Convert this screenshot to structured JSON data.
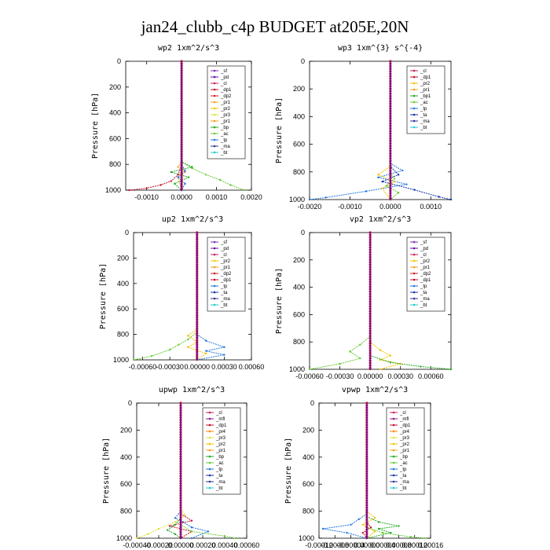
{
  "title": "jan24_clubb_c4p  BUDGET at205E,20N",
  "colors": {
    "sf": "#7b2fbe",
    "pd": "#6a0dad",
    "cl": "#c81e5a",
    "dp1": "#c0102a",
    "dp2": "#d42020",
    "pr1": "#f0a020",
    "pr2": "#f5c200",
    "pr3": "#e0e040",
    "pr4": "#ff8800",
    "bp": "#22aa22",
    "bp1": "#22aa22",
    "ac": "#66cc33",
    "tp": "#2277dd",
    "ta": "#1133aa",
    "ma": "#333399",
    "bt": "#22cccc",
    "mfl": "#8b1a8b"
  },
  "chart_data": [
    {
      "type": "line",
      "title": "wp2  1xm^2/s^3",
      "xlabel": "",
      "ylabel": "Pressure [hPa]",
      "xlim": [
        -0.0016,
        0.002
      ],
      "ylim": [
        1000,
        0
      ],
      "xticks": [
        "-0.0010",
        "0.0000",
        "0.0010",
        "0.0020"
      ],
      "xtick_values": [
        -0.001,
        0,
        0.001,
        0.002
      ],
      "yticks": [
        "0",
        "200",
        "400",
        "600",
        "800",
        "1000"
      ],
      "ytick_values": [
        0,
        200,
        400,
        600,
        800,
        1000
      ],
      "legend": {
        "entries": [
          "_sf",
          "_pd",
          "_cl",
          "_dp1",
          "_dp2",
          "_pr1",
          "_pr2",
          "_pr3",
          "_pr1",
          "_bp",
          "_ac",
          "_tp",
          "_ma",
          "_bt"
        ],
        "color_keys": [
          "sf",
          "pd",
          "cl",
          "dp1",
          "dp2",
          "pr1",
          "pr2",
          "pr3",
          "pr1",
          "bp",
          "ac",
          "tp",
          "ma",
          "bt"
        ],
        "placement": "top-right"
      },
      "series": [
        {
          "color_key": "ac",
          "x": [
            0,
            0,
            0.0003,
            0.0007,
            0.0011,
            0.0014,
            0.0018
          ],
          "y": [
            0,
            780,
            830,
            880,
            920,
            960,
            1000
          ]
        },
        {
          "color_key": "bp",
          "x": [
            0,
            0,
            0.0003,
            -0.0003,
            0.0002,
            -0.0002,
            0
          ],
          "y": [
            0,
            780,
            820,
            860,
            900,
            950,
            1000
          ]
        },
        {
          "color_key": "dp1",
          "x": [
            0,
            0,
            -0.0001,
            -0.0003,
            -0.0006,
            -0.001,
            -0.0015
          ],
          "y": [
            0,
            800,
            880,
            930,
            960,
            985,
            1000
          ]
        },
        {
          "color_key": "pr1",
          "x": [
            0,
            0,
            -0.0001,
            0.0001,
            -0.0001,
            0
          ],
          "y": [
            0,
            780,
            820,
            860,
            900,
            1000
          ]
        },
        {
          "color_key": "tp",
          "x": [
            0,
            0,
            0.0001,
            -0.0001,
            0.0001,
            0
          ],
          "y": [
            0,
            800,
            850,
            900,
            950,
            1000
          ]
        },
        {
          "color_key": "pd",
          "x": [
            0,
            0,
            0,
            0
          ],
          "y": [
            0,
            400,
            800,
            1000
          ]
        }
      ]
    },
    {
      "type": "line",
      "title": "wp3  1xm^{3} s^{-4}",
      "xlabel": "",
      "ylabel": "Pressure [hPa]",
      "xlim": [
        -0.002,
        0.0015
      ],
      "ylim": [
        1000,
        0
      ],
      "xticks": [
        "-0.0020",
        "-0.0010",
        "0.0000",
        "0.0010"
      ],
      "xtick_values": [
        -0.002,
        -0.001,
        0,
        0.001
      ],
      "yticks": [
        "0",
        "200",
        "400",
        "600",
        "800",
        "1000"
      ],
      "ytick_values": [
        0,
        200,
        400,
        600,
        800,
        1000
      ],
      "legend": {
        "entries": [
          "_cl",
          "_dp1",
          "_pr2",
          "_pr1",
          "_bp1",
          "_ac",
          "_tp",
          "_ta",
          "_ma",
          "_bt"
        ],
        "color_keys": [
          "cl",
          "dp1",
          "pr2",
          "pr1",
          "bp1",
          "ac",
          "tp",
          "ta",
          "ma",
          "bt"
        ],
        "placement": "top-right"
      },
      "series": [
        {
          "color_key": "tp",
          "x": [
            0,
            0,
            0.0003,
            -0.0003,
            0.0004,
            -0.0006,
            -0.0016,
            -0.002
          ],
          "y": [
            0,
            740,
            790,
            840,
            890,
            940,
            985,
            1000
          ]
        },
        {
          "color_key": "ta",
          "x": [
            0,
            0,
            0.0002,
            -0.0002,
            0.0006,
            0.0012,
            0.0015
          ],
          "y": [
            0,
            760,
            820,
            870,
            930,
            980,
            1000
          ]
        },
        {
          "color_key": "pr2",
          "x": [
            0,
            0,
            -0.0003,
            0.0001,
            -0.0002,
            0
          ],
          "y": [
            0,
            760,
            820,
            870,
            920,
            1000
          ]
        },
        {
          "color_key": "ac",
          "x": [
            0,
            0,
            0.0001,
            -0.0001,
            0.0002,
            0
          ],
          "y": [
            0,
            800,
            850,
            900,
            950,
            1000
          ]
        },
        {
          "color_key": "dp1",
          "x": [
            0,
            0,
            0,
            0
          ],
          "y": [
            0,
            400,
            800,
            1000
          ]
        }
      ]
    },
    {
      "type": "line",
      "title": "up2  1xm^2/s^3",
      "xlabel": "",
      "ylabel": "Pressure [hPa]",
      "xlim": [
        -0.0007,
        0.0006
      ],
      "ylim": [
        1000,
        0
      ],
      "xticks": [
        "-0.00060",
        "-0.00030",
        "0.00000",
        "0.00030",
        "0.00060"
      ],
      "xtick_values": [
        -0.0006,
        -0.0003,
        0,
        0.0003,
        0.0006
      ],
      "yticks": [
        "0",
        "200",
        "400",
        "600",
        "800",
        "1000"
      ],
      "ytick_values": [
        0,
        200,
        400,
        600,
        800,
        1000
      ],
      "legend": {
        "entries": [
          "_sf",
          "_pd",
          "_cl",
          "_pr2",
          "_pr1",
          "_dp2",
          "_dp1",
          "_tp",
          "_ta",
          "_ma",
          "_bt"
        ],
        "color_keys": [
          "sf",
          "pd",
          "cl",
          "pr2",
          "pr1",
          "dp2",
          "dp1",
          "tp",
          "ta",
          "ma",
          "bt"
        ],
        "placement": "top-right"
      },
      "series": [
        {
          "color_key": "ac",
          "x": [
            0,
            0,
            -0.0001,
            -0.0002,
            -0.0003,
            -0.0005,
            -0.0007
          ],
          "y": [
            0,
            780,
            840,
            880,
            920,
            970,
            1000
          ]
        },
        {
          "color_key": "pr2",
          "x": [
            0,
            0,
            -0.0001,
            0,
            -0.0001,
            0.0001,
            0
          ],
          "y": [
            0,
            760,
            810,
            860,
            900,
            950,
            1000
          ]
        },
        {
          "color_key": "tp",
          "x": [
            0,
            0,
            0.0001,
            0.0003,
            0.0001,
            0.0003,
            0
          ],
          "y": [
            0,
            800,
            850,
            900,
            930,
            960,
            1000
          ]
        },
        {
          "color_key": "dp1",
          "x": [
            0,
            0,
            0,
            0
          ],
          "y": [
            0,
            400,
            800,
            1000
          ]
        }
      ]
    },
    {
      "type": "line",
      "title": "vp2  1xm^2/s^3",
      "xlabel": "",
      "ylabel": "Pressure [hPa]",
      "xlim": [
        -0.0006,
        0.0008
      ],
      "ylim": [
        1000,
        0
      ],
      "xticks": [
        "-0.00060",
        "-0.00030",
        "0.00000",
        "0.00030",
        "0.00060"
      ],
      "xtick_values": [
        -0.0006,
        -0.0003,
        0,
        0.0003,
        0.0006
      ],
      "yticks": [
        "0",
        "200",
        "400",
        "600",
        "800",
        "1000"
      ],
      "ytick_values": [
        0,
        200,
        400,
        600,
        800,
        1000
      ],
      "legend": {
        "entries": [
          "_sf",
          "_pd",
          "_cl",
          "_pr2",
          "_pr1",
          "_dp2",
          "_dp1",
          "_tp",
          "_ta",
          "_ma",
          "_bt"
        ],
        "color_keys": [
          "sf",
          "pd",
          "cl",
          "pr2",
          "pr1",
          "dp2",
          "dp1",
          "tp",
          "ta",
          "ma",
          "bt"
        ],
        "placement": "top-right"
      },
      "series": [
        {
          "color_key": "ac",
          "x": [
            0,
            0,
            -0.0001,
            -0.0002,
            -0.0001,
            -0.0003,
            -0.0006
          ],
          "y": [
            0,
            760,
            820,
            870,
            920,
            960,
            1000
          ]
        },
        {
          "color_key": "pr2",
          "x": [
            0,
            0,
            0.0001,
            0.0002,
            0.0001,
            0.0003,
            0.0001
          ],
          "y": [
            0,
            800,
            860,
            900,
            930,
            960,
            1000
          ]
        },
        {
          "color_key": "bp",
          "x": [
            0,
            0,
            0.0002,
            0.0005,
            0.0008
          ],
          "y": [
            0,
            900,
            950,
            980,
            1000
          ]
        },
        {
          "color_key": "dp1",
          "x": [
            0,
            0,
            0,
            0
          ],
          "y": [
            0,
            400,
            800,
            1000
          ]
        }
      ]
    },
    {
      "type": "line",
      "title": "upwp  1xm^2/s^3",
      "xlabel": "",
      "ylabel": "Pressure [hPa]",
      "xlim": [
        -0.0004,
        0.0006
      ],
      "ylim": [
        1000,
        0
      ],
      "xticks": [
        "-0.00040",
        "-0.00020",
        "0.00000",
        "0.00020",
        "0.00040",
        "0.00060"
      ],
      "xtick_values": [
        -0.0004,
        -0.0002,
        0,
        0.0002,
        0.0004,
        0.0006
      ],
      "yticks": [
        "0",
        "200",
        "400",
        "600",
        "800",
        "1000"
      ],
      "ytick_values": [
        0,
        200,
        400,
        600,
        800,
        1000
      ],
      "legend": {
        "entries": [
          "_cl",
          "_mfl",
          "_dp1",
          "_pr4",
          "_pr3",
          "_pr2",
          "_pr1",
          "_bp",
          "_ac",
          "_tp",
          "_ta",
          "_ma",
          "_bt"
        ],
        "color_keys": [
          "cl",
          "mfl",
          "dp1",
          "pr4",
          "pr3",
          "pr2",
          "pr1",
          "bp",
          "ac",
          "tp",
          "ta",
          "ma",
          "bt"
        ],
        "placement": "top-right"
      },
      "series": [
        {
          "color_key": "tp",
          "x": [
            0,
            0,
            -5e-05,
            2e-05,
            0.0001,
            0.00025,
            0.0001
          ],
          "y": [
            0,
            800,
            850,
            880,
            920,
            950,
            1000
          ]
        },
        {
          "color_key": "pr3",
          "x": [
            0,
            0,
            4e-05,
            -5e-05,
            -0.0002,
            -0.0003,
            -0.0004
          ],
          "y": [
            0,
            780,
            830,
            880,
            930,
            970,
            1000
          ]
        },
        {
          "color_key": "dp1",
          "x": [
            0,
            0,
            0.0001,
            -0.0001,
            0.0001,
            0
          ],
          "y": [
            0,
            820,
            870,
            910,
            950,
            1000
          ]
        },
        {
          "color_key": "bp",
          "x": [
            0,
            0,
            -5e-05,
            -0.00012,
            -5e-05,
            0
          ],
          "y": [
            0,
            850,
            900,
            940,
            970,
            1000
          ]
        },
        {
          "color_key": "ac",
          "x": [
            0,
            0,
            0.0001,
            0.0004,
            0.0005
          ],
          "y": [
            0,
            900,
            950,
            985,
            1000
          ]
        },
        {
          "color_key": "pd",
          "x": [
            0,
            0,
            0,
            0
          ],
          "y": [
            0,
            400,
            800,
            1000
          ]
        }
      ]
    },
    {
      "type": "line",
      "title": "vpwp  1xm^2/s^3",
      "xlabel": "",
      "ylabel": "Pressure [hPa]",
      "xlim": [
        -0.00012,
        0.00016
      ],
      "ylim": [
        1000,
        0
      ],
      "xticks": [
        "-0.00012",
        "-0.00008",
        "-0.00004",
        "0.00000",
        "0.00004",
        "0.00008",
        "0.00012",
        "0.00016"
      ],
      "xtick_values": [
        -0.00012,
        -8e-05,
        -4e-05,
        0,
        4e-05,
        8e-05,
        0.00012,
        0.00016
      ],
      "yticks": [
        "0",
        "200",
        "400",
        "600",
        "800",
        "1000"
      ],
      "ytick_values": [
        0,
        200,
        400,
        600,
        800,
        1000
      ],
      "legend": {
        "entries": [
          "_cl",
          "_mfl",
          "_dp1",
          "_pr4",
          "_pr3",
          "_pr2",
          "_pr1",
          "_bp",
          "_ac",
          "_tp",
          "_ta",
          "_ma",
          "_bt"
        ],
        "color_keys": [
          "cl",
          "mfl",
          "dp1",
          "pr4",
          "pr3",
          "pr2",
          "pr1",
          "bp",
          "ac",
          "tp",
          "ta",
          "ma",
          "bt"
        ],
        "placement": "top-right"
      },
      "series": [
        {
          "color_key": "tp",
          "x": [
            0,
            0,
            -2e-05,
            -4e-05,
            -0.00011,
            -5e-05,
            0
          ],
          "y": [
            0,
            820,
            860,
            900,
            930,
            960,
            1000
          ]
        },
        {
          "color_key": "bp",
          "x": [
            0,
            0,
            3e-05,
            8e-05,
            3e-05,
            6e-05,
            0
          ],
          "y": [
            0,
            840,
            880,
            910,
            930,
            960,
            1000
          ]
        },
        {
          "color_key": "pr2",
          "x": [
            0,
            0,
            2e-05,
            -1e-05,
            2e-05,
            0
          ],
          "y": [
            0,
            800,
            850,
            900,
            950,
            1000
          ]
        },
        {
          "color_key": "dp1",
          "x": [
            0,
            0,
            1e-05,
            -1e-05,
            0
          ],
          "y": [
            0,
            880,
            920,
            960,
            1000
          ]
        },
        {
          "color_key": "ac",
          "x": [
            0,
            0,
            4e-05,
            0.00011,
            0.00015
          ],
          "y": [
            0,
            920,
            960,
            990,
            1000
          ]
        },
        {
          "color_key": "pd",
          "x": [
            0,
            0,
            0,
            0
          ],
          "y": [
            0,
            400,
            800,
            1000
          ]
        }
      ]
    }
  ]
}
